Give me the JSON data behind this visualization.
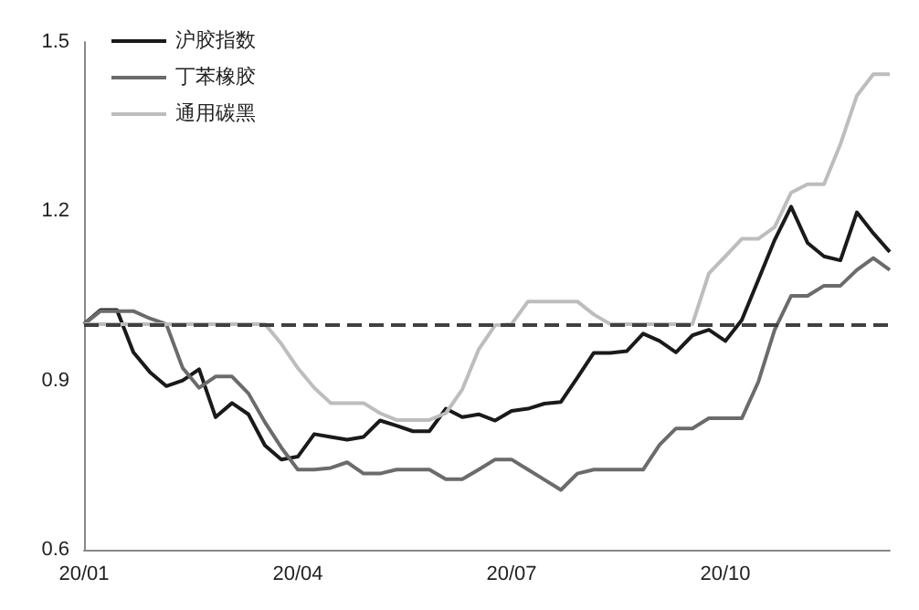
{
  "chart_data": {
    "type": "line",
    "categories": [
      "20/01",
      null,
      null,
      null,
      null,
      null,
      null,
      null,
      null,
      null,
      null,
      null,
      null,
      "20/04",
      null,
      null,
      null,
      null,
      null,
      null,
      null,
      null,
      null,
      null,
      null,
      null,
      "20/07",
      null,
      null,
      null,
      null,
      null,
      null,
      null,
      null,
      null,
      null,
      null,
      null,
      "20/10",
      null,
      null,
      null,
      null,
      null,
      null,
      null,
      null,
      null,
      null
    ],
    "series": [
      {
        "name": "沪胶指数",
        "color": "#1a1a1a",
        "values": [
          1.0,
          1.025,
          1.025,
          0.95,
          0.915,
          0.89,
          0.9,
          0.92,
          0.835,
          0.86,
          0.84,
          0.785,
          0.76,
          0.765,
          0.805,
          0.8,
          0.795,
          0.8,
          0.829,
          0.82,
          0.81,
          0.81,
          0.85,
          0.835,
          0.84,
          0.829,
          0.846,
          0.85,
          0.859,
          0.862,
          0.905,
          0.949,
          0.949,
          0.952,
          0.983,
          0.97,
          0.95,
          0.98,
          0.99,
          0.97,
          1.007,
          1.078,
          1.149,
          1.208,
          1.144,
          1.12,
          1.113,
          1.198,
          1.161,
          1.128
        ]
      },
      {
        "name": "丁苯橡胶",
        "color": "#6b6b6b",
        "values": [
          1.0,
          1.023,
          1.023,
          1.023,
          1.01,
          1.0,
          0.922,
          0.887,
          0.907,
          0.907,
          0.877,
          0.826,
          0.781,
          0.742,
          0.742,
          0.745,
          0.755,
          0.735,
          0.735,
          0.742,
          0.742,
          0.742,
          0.725,
          0.725,
          0.742,
          0.76,
          0.76,
          0.742,
          0.724,
          0.706,
          0.735,
          0.742,
          0.742,
          0.742,
          0.742,
          0.786,
          0.815,
          0.815,
          0.833,
          0.833,
          0.833,
          0.897,
          0.99,
          1.05,
          1.05,
          1.068,
          1.068,
          1.096,
          1.117,
          1.096
        ]
      },
      {
        "name": "通用碳黑",
        "color": "#bdbdbd",
        "values": [
          1.0,
          1.0,
          1.0,
          1.0,
          1.0,
          1.0,
          1.0,
          1.0,
          1.0,
          1.0,
          1.0,
          1.0,
          0.965,
          0.922,
          0.887,
          0.86,
          0.86,
          0.86,
          0.842,
          0.83,
          0.83,
          0.83,
          0.842,
          0.884,
          0.955,
          0.998,
          1.0,
          1.04,
          1.04,
          1.04,
          1.04,
          1.017,
          1.0,
          1.0,
          1.0,
          1.0,
          1.0,
          1.0,
          1.09,
          1.12,
          1.151,
          1.151,
          1.172,
          1.233,
          1.248,
          1.248,
          1.319,
          1.405,
          1.443,
          1.443
        ]
      }
    ],
    "ylim": [
      0.6,
      1.5
    ],
    "yticks": [
      0.6,
      0.9,
      1.2,
      1.5
    ],
    "grid": false,
    "legend": "top left",
    "marker": "none",
    "line_style": "solid",
    "ref_lines": [
      {
        "axis": "y",
        "value": 1.0,
        "color": "#404040",
        "line_style": "dashed"
      }
    ]
  }
}
